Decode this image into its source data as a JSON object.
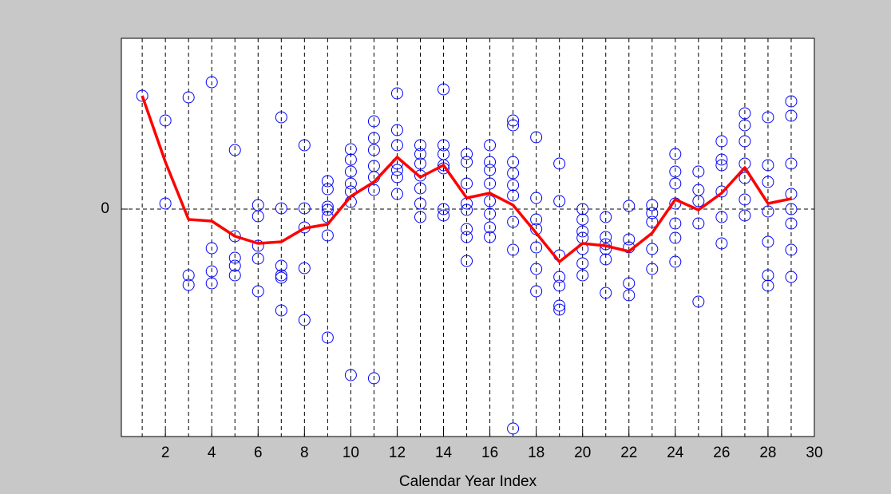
{
  "chart_data": {
    "type": "scatter",
    "xlabel": "Calendar Year Index",
    "xlim": [
      0.1,
      30
    ],
    "ylim": [
      -2.85,
      2.14
    ],
    "xticks": [
      2,
      4,
      6,
      8,
      10,
      12,
      14,
      16,
      18,
      20,
      22,
      24,
      26,
      28,
      30
    ],
    "yticks": [
      0
    ],
    "grid": true,
    "series": [
      {
        "type": "scatter",
        "marker": "open-circle",
        "color": "#0000ff",
        "x": [
          1,
          2,
          2,
          3,
          3,
          3,
          4,
          4,
          4,
          4,
          5,
          5,
          5,
          5,
          5,
          6,
          6,
          6,
          6,
          6,
          7,
          7,
          7,
          7,
          7,
          7,
          8,
          8,
          8,
          8,
          8,
          9,
          9,
          9,
          9,
          9,
          9,
          9,
          10,
          10,
          10,
          10,
          10,
          10,
          10,
          11,
          11,
          11,
          11,
          11,
          11,
          11,
          12,
          12,
          12,
          12,
          12,
          12,
          12,
          13,
          13,
          13,
          13,
          13,
          13,
          13,
          14,
          14,
          14,
          14,
          14,
          14,
          14,
          15,
          15,
          15,
          15,
          15,
          15,
          15,
          15,
          16,
          16,
          16,
          16,
          16,
          16,
          16,
          16,
          17,
          17,
          17,
          17,
          17,
          17,
          17,
          17,
          17,
          18,
          18,
          18,
          18,
          18,
          18,
          18,
          19,
          19,
          19,
          19,
          19,
          19,
          19,
          20,
          20,
          20,
          20,
          20,
          20,
          20,
          21,
          21,
          21,
          21,
          21,
          21,
          22,
          22,
          22,
          22,
          22,
          23,
          23,
          23,
          23,
          23,
          24,
          24,
          24,
          24,
          24,
          24,
          24,
          25,
          25,
          25,
          25,
          25,
          26,
          26,
          26,
          26,
          26,
          26,
          27,
          27,
          27,
          27,
          27,
          27,
          27,
          28,
          28,
          28,
          28,
          28,
          28,
          28,
          29,
          29,
          29,
          29,
          29,
          29,
          29,
          29
        ],
        "values": [
          1.42,
          1.11,
          0.07,
          1.4,
          -0.83,
          -0.95,
          1.59,
          -0.49,
          -0.78,
          -0.93,
          0.74,
          -0.34,
          -0.61,
          -0.71,
          -0.83,
          0.05,
          -0.09,
          -0.46,
          -0.62,
          -1.03,
          1.15,
          0.01,
          -0.71,
          -0.83,
          -0.86,
          -1.27,
          0.8,
          0.01,
          -0.23,
          -0.74,
          -1.39,
          0.35,
          0.25,
          0.03,
          -0.01,
          -0.1,
          -0.33,
          -1.61,
          0.75,
          0.62,
          0.47,
          0.32,
          0.22,
          0.09,
          -2.08,
          1.1,
          0.89,
          0.74,
          0.54,
          0.4,
          0.24,
          -2.12,
          1.45,
          0.99,
          0.8,
          0.57,
          0.49,
          0.4,
          0.19,
          0.8,
          0.69,
          0.57,
          0.42,
          0.26,
          0.07,
          -0.1,
          1.5,
          0.8,
          0.69,
          0.55,
          0.51,
          0,
          -0.08,
          0.69,
          0.59,
          0.32,
          0.07,
          -0.01,
          -0.25,
          -0.35,
          -0.65,
          0.8,
          0.59,
          0.49,
          0.32,
          0.1,
          -0.06,
          -0.23,
          -0.35,
          1.11,
          1.05,
          0.59,
          0.45,
          0.3,
          0.17,
          -0.16,
          -0.51,
          -2.75,
          0.9,
          0.14,
          -0.13,
          -0.25,
          -0.48,
          -0.75,
          -1.03,
          0.57,
          0.1,
          -0.58,
          -0.85,
          -0.96,
          -1.21,
          -1.26,
          0,
          -0.13,
          -0.28,
          -0.36,
          -0.5,
          -0.68,
          -0.83,
          -0.1,
          -0.35,
          -0.44,
          -0.5,
          -0.63,
          -1.05,
          0.04,
          -0.38,
          -0.48,
          -0.93,
          -1.08,
          0.05,
          -0.05,
          -0.16,
          -0.5,
          -0.75,
          0.69,
          0.47,
          0.32,
          0.07,
          -0.18,
          -0.36,
          -0.66,
          0.47,
          0.24,
          0.1,
          -0.18,
          -1.16,
          0.85,
          0.62,
          0.55,
          0.22,
          -0.1,
          -0.43,
          1.2,
          1.05,
          0.85,
          0.57,
          0.39,
          0.12,
          -0.08,
          1.15,
          0.55,
          0.34,
          -0.03,
          -0.41,
          -0.83,
          -0.96,
          1.35,
          1.17,
          0.57,
          0.19,
          0,
          -0.18,
          -0.51,
          -0.85
        ]
      },
      {
        "type": "line",
        "color": "#ff0000",
        "x": [
          1,
          2,
          3,
          4,
          5,
          6,
          7,
          8,
          9,
          10,
          11,
          12,
          13,
          14,
          15,
          16,
          17,
          18,
          19,
          20,
          21,
          22,
          23,
          24,
          25,
          26,
          27,
          28,
          29
        ],
        "values": [
          1.42,
          0.59,
          -0.13,
          -0.15,
          -0.34,
          -0.43,
          -0.41,
          -0.24,
          -0.19,
          0.16,
          0.34,
          0.65,
          0.4,
          0.55,
          0.14,
          0.2,
          0.05,
          -0.3,
          -0.66,
          -0.43,
          -0.46,
          -0.53,
          -0.3,
          0.12,
          -0.01,
          0.2,
          0.52,
          0.07,
          0.13
        ]
      }
    ]
  }
}
